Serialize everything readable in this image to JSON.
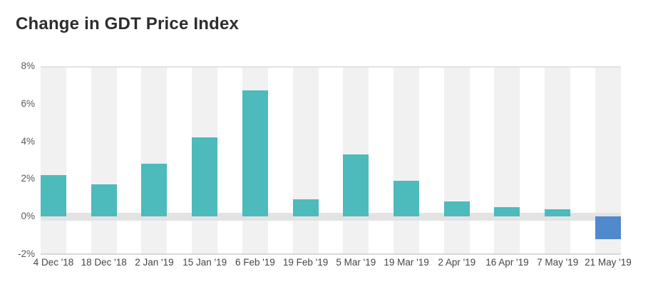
{
  "header": {
    "title": "Change in GDT Price Index"
  },
  "chart_data": {
    "type": "bar",
    "title": "Change in GDT Price Index",
    "categories": [
      "4 Dec '18",
      "18 Dec '18",
      "2 Jan '19",
      "15 Jan '19",
      "6 Feb '19",
      "19 Feb '19",
      "5 Mar '19",
      "19 Mar '19",
      "2 Apr '19",
      "16 Apr '19",
      "7 May '19",
      "21 May '19"
    ],
    "values": [
      2.2,
      1.7,
      2.8,
      4.2,
      6.7,
      0.9,
      3.3,
      1.9,
      0.8,
      0.5,
      0.4,
      -1.2
    ],
    "value_unit": "%",
    "xlabel": "",
    "ylabel": "",
    "ylim": [
      -2,
      8
    ],
    "ytick_values": [
      8,
      6,
      4,
      2,
      0,
      -2
    ],
    "ytick_labels": [
      "8%",
      "6%",
      "4%",
      "2%",
      "0%",
      "-2%"
    ],
    "legend": "none",
    "grid": {
      "top_line": true,
      "bottom_line": true,
      "zero_band": true,
      "column_background_bands": true,
      "intermediate_gridlines": false
    },
    "colors": {
      "positive_bar": "#4dbabc",
      "negative_bar": "#5189cd",
      "column_band": "#f1f1f2",
      "zero_band": "#e3e3e4",
      "top_line": "#e3e3e3",
      "bottom_line": "#d8d8d8",
      "ytick_text": "#5a5b60",
      "xtick_text": "#43454a",
      "title_text": "#2d2d30",
      "background": "#ffffff"
    }
  }
}
